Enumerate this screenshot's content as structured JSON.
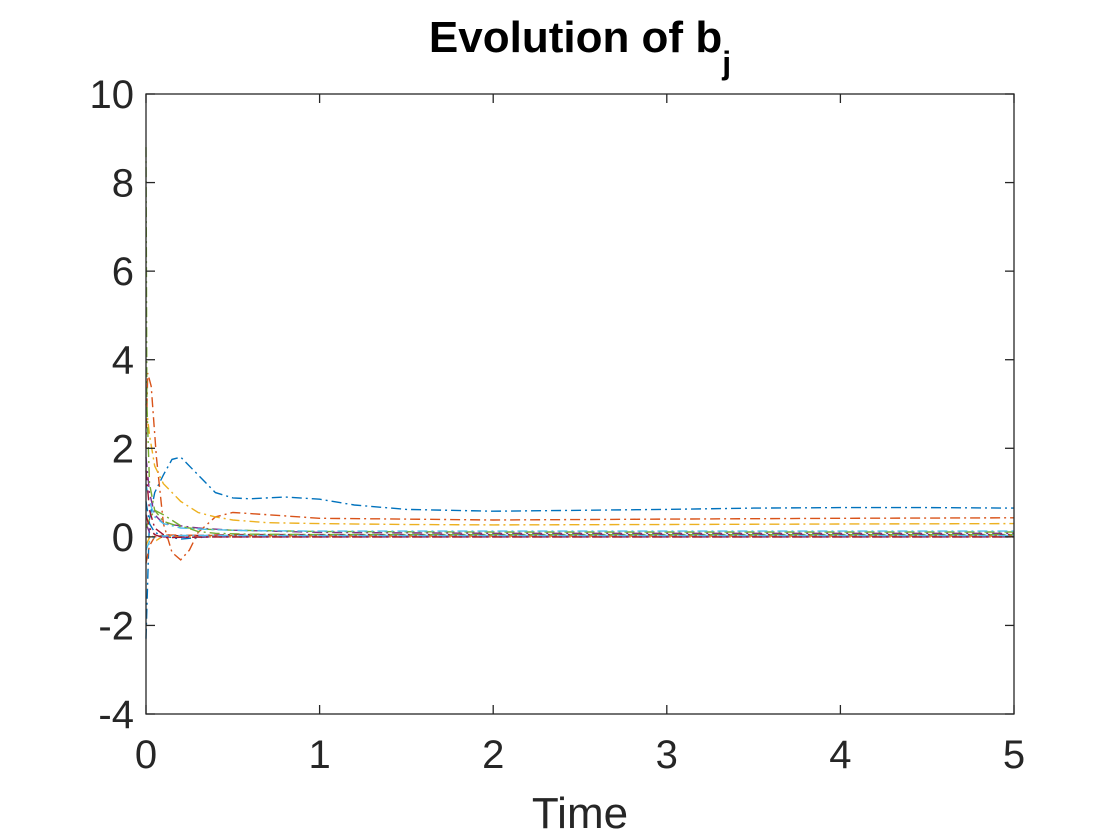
{
  "chart_data": {
    "type": "line",
    "title": "Evolution of b",
    "title_subscript": "j",
    "xlabel": "Time",
    "ylabel": "",
    "xlim": [
      0,
      5
    ],
    "ylim": [
      -4,
      10
    ],
    "x_ticks": [
      0,
      1,
      2,
      3,
      4,
      5
    ],
    "y_ticks": [
      -4,
      -2,
      0,
      2,
      4,
      6,
      8,
      10
    ],
    "x_tick_labels": [
      "0",
      "1",
      "2",
      "3",
      "4",
      "5"
    ],
    "y_tick_labels": [
      "-4",
      "-2",
      "0",
      "2",
      "4",
      "6",
      "8",
      "10"
    ],
    "grid": false,
    "line_style": "dash-dot",
    "series": [
      {
        "color": "#0072BD",
        "x": [
          0,
          0.02,
          0.05,
          0.1,
          0.15,
          0.2,
          0.3,
          0.4,
          0.5,
          0.6,
          0.8,
          1.0,
          1.2,
          1.5,
          2.0,
          2.5,
          3.0,
          3.5,
          4.0,
          4.5,
          5.0
        ],
        "y": [
          -2.3,
          0.4,
          1.0,
          1.4,
          1.75,
          1.8,
          1.4,
          1.0,
          0.88,
          0.86,
          0.9,
          0.85,
          0.72,
          0.62,
          0.58,
          0.6,
          0.62,
          0.65,
          0.66,
          0.66,
          0.65
        ]
      },
      {
        "color": "#D95319",
        "x": [
          0,
          0.01,
          0.03,
          0.06,
          0.1,
          0.15,
          0.2,
          0.25,
          0.3,
          0.4,
          0.5,
          0.7,
          1.0,
          1.5,
          2.0,
          3.0,
          4.0,
          5.0
        ],
        "y": [
          2.0,
          3.7,
          3.4,
          1.8,
          0.3,
          -0.35,
          -0.52,
          -0.3,
          0.1,
          0.45,
          0.55,
          0.5,
          0.42,
          0.4,
          0.38,
          0.4,
          0.42,
          0.43
        ]
      },
      {
        "color": "#EDB120",
        "x": [
          0,
          0.02,
          0.05,
          0.1,
          0.2,
          0.3,
          0.4,
          0.5,
          0.7,
          1.0,
          1.5,
          2.0,
          3.0,
          4.0,
          5.0
        ],
        "y": [
          3.0,
          2.3,
          1.6,
          1.2,
          0.8,
          0.55,
          0.45,
          0.38,
          0.32,
          0.3,
          0.28,
          0.27,
          0.28,
          0.29,
          0.3
        ]
      },
      {
        "color": "#7E2F8E",
        "x": [
          0,
          0.02,
          0.05,
          0.1,
          0.2,
          0.3,
          0.5,
          0.8,
          1.0,
          2.0,
          3.0,
          4.0,
          5.0
        ],
        "y": [
          1.8,
          1.0,
          0.5,
          0.3,
          0.25,
          0.2,
          0.15,
          0.12,
          0.1,
          0.08,
          0.08,
          0.08,
          0.08
        ]
      },
      {
        "color": "#77AC30",
        "x": [
          0,
          0.005,
          0.02,
          0.05,
          0.1,
          0.2,
          0.3,
          0.5,
          1.0,
          2.0,
          3.0,
          4.0,
          5.0
        ],
        "y": [
          8.8,
          3.0,
          1.2,
          0.6,
          0.35,
          0.22,
          0.18,
          0.15,
          0.12,
          0.11,
          0.11,
          0.11,
          0.11
        ]
      },
      {
        "color": "#4DBEEE",
        "x": [
          0,
          0.02,
          0.05,
          0.1,
          0.2,
          0.4,
          0.6,
          1.0,
          2.0,
          3.0,
          4.0,
          5.0
        ],
        "y": [
          1.2,
          0.8,
          0.45,
          0.3,
          0.2,
          0.16,
          0.14,
          0.13,
          0.13,
          0.13,
          0.13,
          0.13
        ]
      },
      {
        "color": "#A2142F",
        "x": [
          0,
          0.02,
          0.05,
          0.1,
          0.2,
          0.3,
          0.5,
          1.0,
          2.0,
          3.0,
          4.0,
          5.0
        ],
        "y": [
          1.5,
          0.6,
          0.2,
          0.05,
          0.02,
          0.03,
          0.05,
          0.05,
          0.05,
          0.05,
          0.05,
          0.05
        ]
      },
      {
        "color": "#0072BD",
        "x": [
          0,
          0.02,
          0.05,
          0.1,
          0.2,
          0.35,
          0.5,
          1.0,
          2.0,
          3.0,
          4.0,
          5.0
        ],
        "y": [
          0.8,
          0.3,
          0.1,
          0.02,
          -0.05,
          0.0,
          0.02,
          0.02,
          0.02,
          0.02,
          0.02,
          0.02
        ]
      },
      {
        "color": "#D95319",
        "x": [
          0,
          0.02,
          0.05,
          0.1,
          0.2,
          0.4,
          1.0,
          2.0,
          3.0,
          4.0,
          5.0
        ],
        "y": [
          -0.6,
          -0.2,
          0.0,
          0.04,
          0.04,
          0.03,
          0.02,
          0.02,
          0.02,
          0.02,
          0.02
        ]
      },
      {
        "color": "#EDB120",
        "x": [
          0,
          0.01,
          0.03,
          0.06,
          0.1,
          0.2,
          0.5,
          1.0,
          2.0,
          3.0,
          4.0,
          5.0
        ],
        "y": [
          -0.2,
          -0.1,
          0.05,
          -0.08,
          0.02,
          0.0,
          0.0,
          0.0,
          0.0,
          0.0,
          0.0,
          0.0
        ]
      },
      {
        "color": "#7E2F8E",
        "x": [
          0,
          0.02,
          0.05,
          0.1,
          0.2,
          0.4,
          1.0,
          2.0,
          3.0,
          4.0,
          5.0
        ],
        "y": [
          0.3,
          0.1,
          0.05,
          0.0,
          -0.01,
          0.0,
          0.0,
          0.0,
          0.0,
          0.0,
          0.0
        ]
      },
      {
        "color": "#77AC30",
        "x": [
          0,
          0.02,
          0.05,
          0.1,
          0.2,
          0.3,
          0.4,
          0.6,
          1.0,
          2.0,
          3.0,
          4.0,
          5.0
        ],
        "y": [
          0.2,
          0.4,
          0.6,
          0.5,
          0.25,
          0.12,
          0.08,
          0.06,
          0.05,
          0.05,
          0.05,
          0.05,
          0.05
        ]
      },
      {
        "color": "#4DBEEE",
        "x": [
          0,
          0.02,
          0.05,
          0.1,
          0.2,
          0.4,
          1.0,
          2.0,
          3.0,
          4.0,
          5.0
        ],
        "y": [
          -0.3,
          -0.1,
          0.0,
          0.02,
          0.03,
          0.03,
          0.03,
          0.03,
          0.03,
          0.03,
          0.03
        ]
      },
      {
        "color": "#A2142F",
        "x": [
          0,
          0.02,
          0.05,
          0.1,
          0.2,
          0.4,
          1.0,
          2.0,
          3.0,
          4.0,
          5.0
        ],
        "y": [
          0.5,
          0.2,
          0.05,
          -0.02,
          -0.01,
          0.0,
          0.0,
          0.0,
          0.0,
          0.0,
          0.0
        ]
      }
    ]
  }
}
